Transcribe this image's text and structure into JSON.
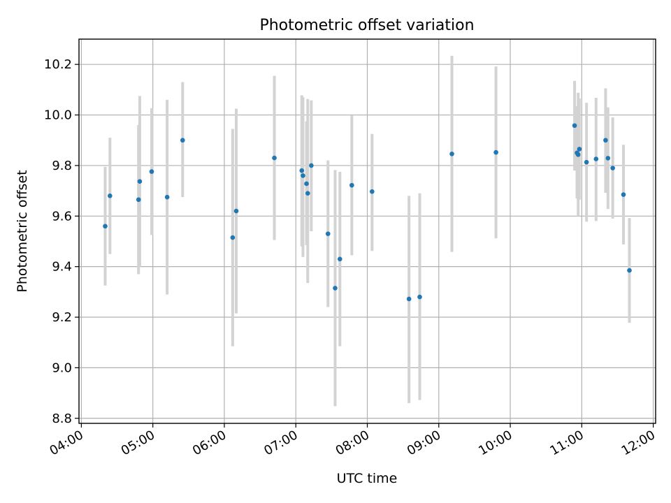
{
  "chart_data": {
    "type": "scatter",
    "title": "Photometric offset variation",
    "xlabel": "UTC time",
    "ylabel": "Photometric offset",
    "x_tick_labels": [
      "04:00",
      "05:00",
      "06:00",
      "07:00",
      "08:00",
      "09:00",
      "10:00",
      "11:00",
      "12:00"
    ],
    "y_tick_labels": [
      "8.8",
      "9.0",
      "9.2",
      "9.4",
      "9.6",
      "9.8",
      "10.0",
      "10.2"
    ],
    "y_ticks": [
      8.8,
      9.0,
      9.2,
      9.4,
      9.6,
      9.8,
      10.0,
      10.2
    ],
    "xlim": [
      "03:58",
      "12:02"
    ],
    "ylim": [
      8.78,
      10.3
    ],
    "grid": true,
    "colors": {
      "point": "#1f77b4",
      "errorbar": "#d3d3d3"
    },
    "series": [
      {
        "points": [
          {
            "x": "04:20",
            "y": 9.56,
            "ylow": 9.325,
            "yhigh": 9.795
          },
          {
            "x": "04:24",
            "y": 9.68,
            "ylow": 9.45,
            "yhigh": 9.91
          },
          {
            "x": "04:48",
            "y": 9.665,
            "ylow": 9.37,
            "yhigh": 9.96
          },
          {
            "x": "04:49",
            "y": 9.737,
            "ylow": 9.4,
            "yhigh": 10.075
          },
          {
            "x": "04:59",
            "y": 9.776,
            "ylow": 9.525,
            "yhigh": 10.027
          },
          {
            "x": "05:12",
            "y": 9.675,
            "ylow": 9.29,
            "yhigh": 10.06
          },
          {
            "x": "05:25",
            "y": 9.9,
            "ylow": 9.675,
            "yhigh": 10.13
          },
          {
            "x": "06:07",
            "y": 9.515,
            "ylow": 9.085,
            "yhigh": 9.945
          },
          {
            "x": "06:10",
            "y": 9.62,
            "ylow": 9.215,
            "yhigh": 10.025
          },
          {
            "x": "06:42",
            "y": 9.83,
            "ylow": 9.505,
            "yhigh": 10.155
          },
          {
            "x": "07:05",
            "y": 9.78,
            "ylow": 9.48,
            "yhigh": 10.078
          },
          {
            "x": "07:06",
            "y": 9.76,
            "ylow": 9.438,
            "yhigh": 10.07
          },
          {
            "x": "07:09",
            "y": 9.728,
            "ylow": 9.485,
            "yhigh": 9.975
          },
          {
            "x": "07:10",
            "y": 9.69,
            "ylow": 9.335,
            "yhigh": 10.063
          },
          {
            "x": "07:13",
            "y": 9.8,
            "ylow": 9.54,
            "yhigh": 10.058
          },
          {
            "x": "07:27",
            "y": 9.53,
            "ylow": 9.24,
            "yhigh": 9.82
          },
          {
            "x": "07:33",
            "y": 9.315,
            "ylow": 8.848,
            "yhigh": 9.782
          },
          {
            "x": "07:37",
            "y": 9.43,
            "ylow": 9.085,
            "yhigh": 9.775
          },
          {
            "x": "07:47",
            "y": 9.722,
            "ylow": 9.445,
            "yhigh": 9.998
          },
          {
            "x": "08:04",
            "y": 9.697,
            "ylow": 9.462,
            "yhigh": 9.925
          },
          {
            "x": "08:35",
            "y": 9.272,
            "ylow": 8.86,
            "yhigh": 9.68
          },
          {
            "x": "08:44",
            "y": 9.28,
            "ylow": 8.872,
            "yhigh": 9.69
          },
          {
            "x": "09:11",
            "y": 9.846,
            "ylow": 9.458,
            "yhigh": 10.234
          },
          {
            "x": "09:48",
            "y": 9.852,
            "ylow": 9.512,
            "yhigh": 10.192
          },
          {
            "x": "10:54",
            "y": 9.958,
            "ylow": 9.78,
            "yhigh": 10.135
          },
          {
            "x": "10:56",
            "y": 9.85,
            "ylow": 9.67,
            "yhigh": 10.035
          },
          {
            "x": "10:57",
            "y": 9.843,
            "ylow": 9.6,
            "yhigh": 10.088
          },
          {
            "x": "10:58",
            "y": 9.865,
            "ylow": 9.665,
            "yhigh": 10.065
          },
          {
            "x": "11:04",
            "y": 9.813,
            "ylow": 9.578,
            "yhigh": 10.048
          },
          {
            "x": "11:12",
            "y": 9.826,
            "ylow": 9.58,
            "yhigh": 10.068
          },
          {
            "x": "11:20",
            "y": 9.9,
            "ylow": 9.692,
            "yhigh": 10.105
          },
          {
            "x": "11:22",
            "y": 9.829,
            "ylow": 9.628,
            "yhigh": 10.03
          },
          {
            "x": "11:26",
            "y": 9.79,
            "ylow": 9.59,
            "yhigh": 9.99
          },
          {
            "x": "11:35",
            "y": 9.685,
            "ylow": 9.488,
            "yhigh": 9.882
          },
          {
            "x": "11:40",
            "y": 9.385,
            "ylow": 9.178,
            "yhigh": 9.592
          }
        ]
      }
    ]
  }
}
